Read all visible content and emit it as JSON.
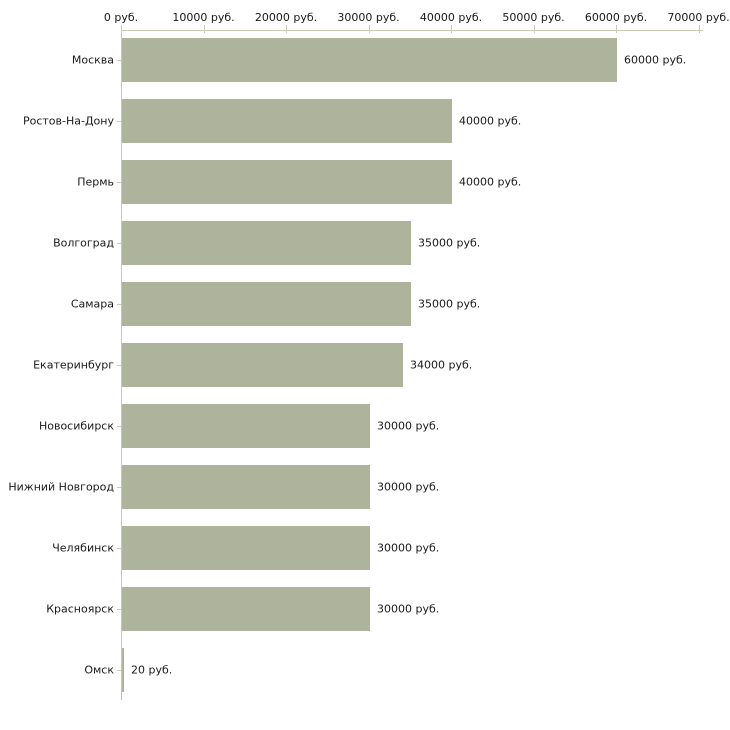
{
  "chart_data": {
    "type": "bar",
    "orientation": "horizontal",
    "title": "",
    "xlabel": "",
    "ylabel": "",
    "unit": "руб.",
    "categories": [
      "Москва",
      "Ростов-На-Дону",
      "Пермь",
      "Волгоград",
      "Самара",
      "Екатеринбург",
      "Новосибирск",
      "Нижний Новгород",
      "Челябинск",
      "Красноярск",
      "Омск"
    ],
    "values": [
      60000,
      40000,
      40000,
      35000,
      35000,
      34000,
      30000,
      30000,
      30000,
      30000,
      20
    ],
    "value_labels": [
      "60000 руб.",
      "40000 руб.",
      "40000 руб.",
      "35000 руб.",
      "35000 руб.",
      "34000 руб.",
      "30000 руб.",
      "30000 руб.",
      "30000 руб.",
      "30000 руб.",
      "20 руб."
    ],
    "xlim": [
      0,
      70000
    ],
    "x_ticks": [
      0,
      10000,
      20000,
      30000,
      40000,
      50000,
      60000,
      70000
    ],
    "x_tick_labels": [
      "0 руб.",
      "10000 руб.",
      "20000 руб.",
      "30000 руб.",
      "40000 руб.",
      "50000 руб.",
      "60000 руб.",
      "70000 руб."
    ],
    "grid": false,
    "legend": null,
    "colors": {
      "bar": "#aeb49c",
      "axis": "#ccc9b4",
      "axis_vertical": "#c7c6bd",
      "text": "#1a1a1a",
      "background": "#ffffff"
    }
  }
}
